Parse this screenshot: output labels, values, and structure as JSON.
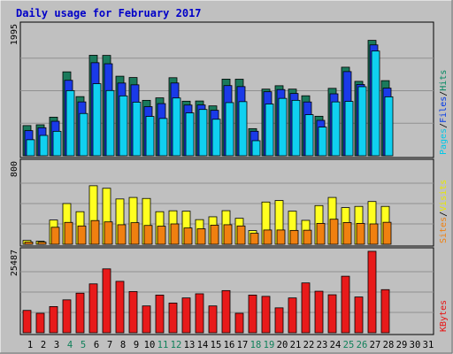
{
  "chart_data": {
    "type": "bar",
    "title": "Daily usage for February 2017",
    "days": [
      "1",
      "2",
      "3",
      "4",
      "5",
      "6",
      "7",
      "8",
      "9",
      "10",
      "11",
      "12",
      "13",
      "14",
      "15",
      "16",
      "17",
      "18",
      "19",
      "20",
      "21",
      "22",
      "23",
      "24",
      "25",
      "26",
      "27",
      "28",
      "29",
      "30",
      "31"
    ],
    "weekend_days": [
      "4",
      "5",
      "11",
      "12",
      "18",
      "19",
      "25",
      "26"
    ],
    "panels": [
      {
        "id": "hits",
        "ymax_label": "1995",
        "ymax": 1995,
        "right_label_parts": [
          {
            "text": "Pages",
            "color": "#00c8e8"
          },
          {
            "text": "/",
            "color": "#000000"
          },
          {
            "text": "Files",
            "color": "#0038e8"
          },
          {
            "text": "/",
            "color": "#000000"
          },
          {
            "text": "Hits",
            "color": "#008860"
          }
        ],
        "series": [
          {
            "key": "hits",
            "color": "#1a7a5c",
            "values": [
              463,
              475,
              592,
              1287,
              907,
              1541,
              1539,
              1220,
              1200,
              850,
              888,
              1197,
              837,
              840,
              765,
              1175,
              1174,
              416,
              1022,
              1074,
              1022,
              920,
              606,
              1034,
              1358,
              1141,
              1770,
              1152,
              0,
              0,
              0
            ]
          },
          {
            "key": "files",
            "color": "#1a3ae8",
            "values": [
              385,
              430,
              529,
              1157,
              826,
              1427,
              1411,
              1115,
              1088,
              753,
              800,
              1116,
              778,
              779,
              697,
              1076,
              1061,
              376,
              982,
              1015,
              955,
              825,
              543,
              950,
              1291,
              1093,
              1700,
              1037,
              0,
              0,
              0
            ]
          },
          {
            "key": "pages",
            "color": "#10d0f0",
            "values": [
              246,
              312,
              375,
              999,
              648,
              1105,
              1000,
              918,
              822,
              603,
              572,
              886,
              657,
              710,
              560,
              815,
              830,
              231,
              794,
              880,
              850,
              630,
              440,
              826,
              834,
              1059,
              1606,
              904,
              0,
              0,
              0
            ]
          }
        ]
      },
      {
        "id": "visits",
        "ymax_label": "800",
        "ymax": 800,
        "right_label_parts": [
          {
            "text": "Sites",
            "color": "#f08010"
          },
          {
            "text": "/",
            "color": "#000000"
          },
          {
            "text": "Visits",
            "color": "#e8e800"
          }
        ],
        "series": [
          {
            "key": "visits",
            "color": "#ffff20",
            "values": [
              38,
              30,
              238,
              400,
              320,
              575,
              550,
              445,
              460,
              450,
              320,
              329,
              325,
              242,
              270,
              330,
              255,
              134,
              415,
              430,
              325,
              235,
              380,
              460,
              360,
              372,
              420,
              372,
              0,
              0,
              0
            ]
          },
          {
            "key": "sites",
            "color": "#f08010",
            "values": [
              22,
              21,
              167,
              215,
              180,
              233,
              220,
              192,
              212,
              185,
              178,
              200,
              160,
              152,
              188,
              192,
              180,
              108,
              140,
              140,
              136,
              138,
              205,
              246,
              214,
              205,
              200,
              216,
              0,
              0,
              0
            ]
          }
        ]
      },
      {
        "id": "kbytes",
        "ymax_label": "25487",
        "ymax": 25487,
        "right_label_parts": [
          {
            "text": "KBytes",
            "color": "#e81010"
          }
        ],
        "series": [
          {
            "key": "kbytes",
            "color": "#e81a1a",
            "values": [
              7000,
              6100,
              8200,
              10300,
              12400,
              15300,
              20000,
              16100,
              12900,
              8400,
              11800,
              9300,
              10900,
              12200,
              8400,
              13200,
              6100,
              11800,
              11400,
              7800,
              10900,
              15600,
              13000,
              11900,
              17700,
              11200,
              25500,
              13500,
              0,
              0,
              0
            ]
          }
        ]
      }
    ]
  }
}
